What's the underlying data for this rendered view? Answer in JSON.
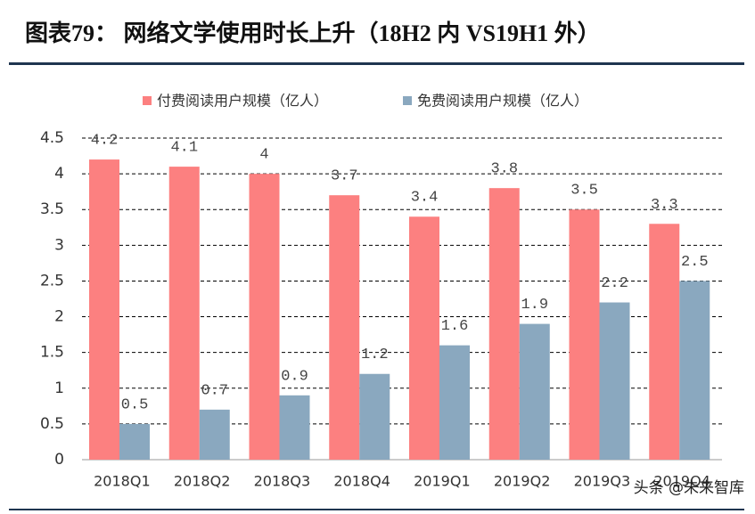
{
  "header": {
    "title": "图表79：  网络文学使用时长上升（18H2 内 VS19H1 外）"
  },
  "watermark": "头条 @未来智库",
  "chart_data": {
    "type": "bar",
    "categories": [
      "2018Q1",
      "2018Q2",
      "2018Q3",
      "2018Q4",
      "2019Q1",
      "2019Q2",
      "2019Q3",
      "2019Q4"
    ],
    "series": [
      {
        "name": "付费阅读用户规模（亿人）",
        "color": "#fc8080",
        "values": [
          4.2,
          4.1,
          4,
          3.7,
          3.4,
          3.8,
          3.5,
          3.3
        ]
      },
      {
        "name": "免费阅读用户规模（亿人）",
        "color": "#8aa8bf",
        "values": [
          0.5,
          0.7,
          0.9,
          1.2,
          1.6,
          1.9,
          2.2,
          2.5
        ]
      }
    ],
    "ylim": [
      0,
      4.5
    ],
    "yticks": [
      0,
      0.5,
      1,
      1.5,
      2,
      2.5,
      3,
      3.5,
      4,
      4.5
    ],
    "grid": true,
    "legend": "top"
  }
}
